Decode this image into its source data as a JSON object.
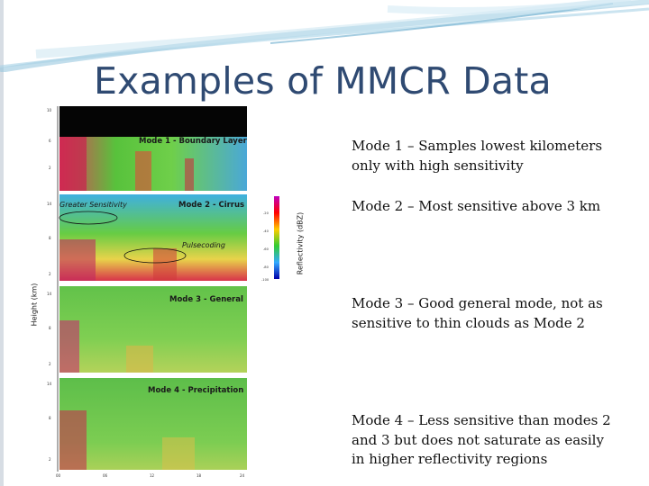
{
  "slide": {
    "title": "Examples of MMCR Data",
    "accent_color": "#2f4a72",
    "swoosh_color": "#8fc3dc"
  },
  "figure": {
    "y_axis_label": "Height (km)",
    "colorbar_label": "Reflectivity (dBZ)",
    "panels": [
      {
        "label": "Mode 1 - Boundary Layer",
        "notes": []
      },
      {
        "label": "Mode 2 - Cirrus",
        "notes": [
          "Greater Sensitivity",
          "Pulsecoding"
        ]
      },
      {
        "label": "Mode 3 - General",
        "notes": []
      },
      {
        "label": "Mode 4 - Precipitation",
        "notes": []
      }
    ]
  },
  "descriptions": [
    {
      "text": "Mode 1 – Samples lowest kilometers only with high sensitivity"
    },
    {
      "text": "Mode 2 – Most sensitive above 3 km"
    },
    {
      "text": "Mode 3 – Good general mode, not as sensitive to thin clouds as Mode 2"
    },
    {
      "text": "Mode 4 – Less sensitive than modes 2 and 3 but does not saturate as easily in higher reflectivity regions"
    }
  ]
}
